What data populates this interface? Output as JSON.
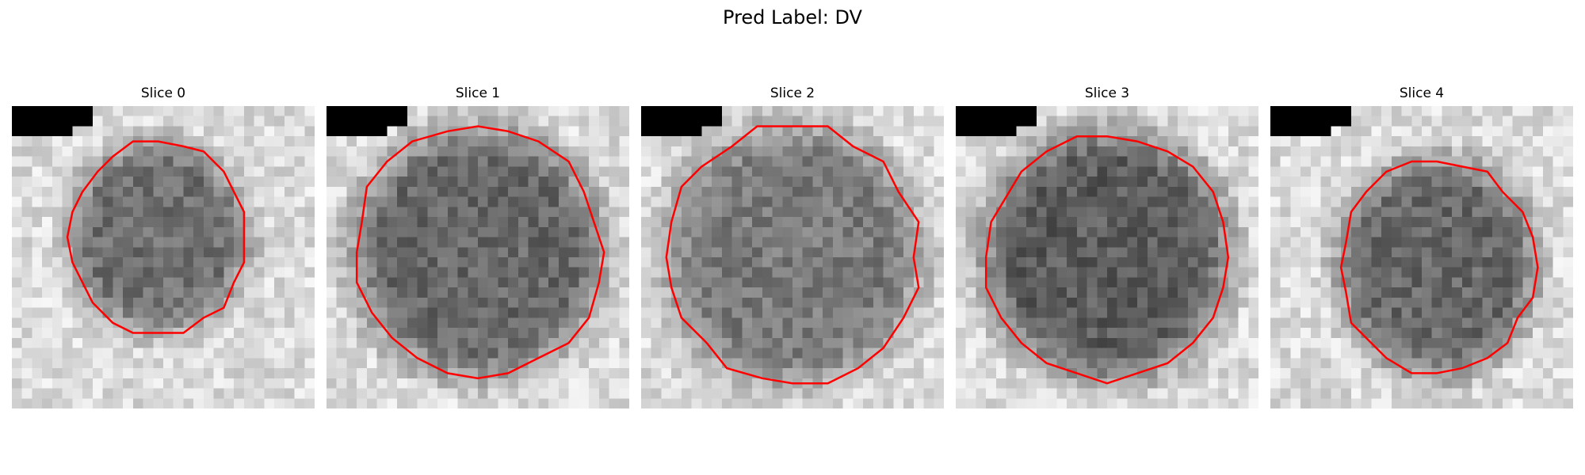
{
  "figure": {
    "title": "Pred Label: DV",
    "contour_color": "#ff0000",
    "colormap": "gray"
  },
  "panels": [
    {
      "title": "Slice 0",
      "seed": 11
    },
    {
      "title": "Slice 1",
      "seed": 23
    },
    {
      "title": "Slice 2",
      "seed": 37
    },
    {
      "title": "Slice 3",
      "seed": 51
    },
    {
      "title": "Slice 4",
      "seed": 67
    }
  ]
}
